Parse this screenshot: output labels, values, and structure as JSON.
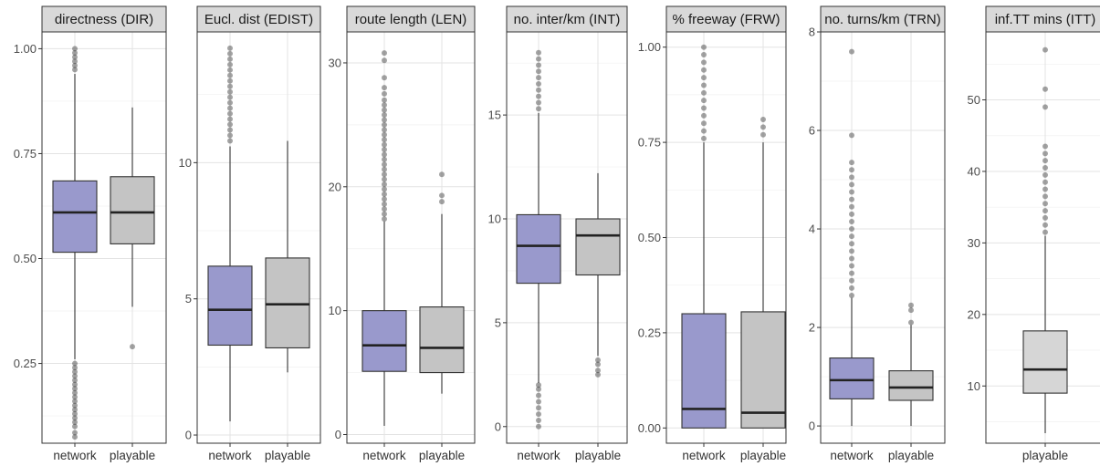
{
  "chart_data": [
    {
      "type": "box",
      "title": "directness (DIR)",
      "ylim": [
        0.06,
        1.04
      ],
      "yticks": [
        0.25,
        0.5,
        0.75,
        1.0
      ],
      "ytick_labels": [
        "0.25",
        "0.50",
        "0.75",
        "1.00"
      ],
      "categories": [
        "network",
        "playable"
      ],
      "boxes": [
        {
          "category": "network",
          "q1": 0.515,
          "median": 0.61,
          "q3": 0.685,
          "whisker_low": 0.26,
          "whisker_high": 0.94,
          "outliers_low": [
            0.075,
            0.085,
            0.1,
            0.11,
            0.12,
            0.13,
            0.14,
            0.15,
            0.16,
            0.17,
            0.18,
            0.19,
            0.2,
            0.21,
            0.22,
            0.23,
            0.24,
            0.25
          ],
          "outliers_high": [
            0.95,
            0.96,
            0.97,
            0.98,
            0.99,
            1.0
          ],
          "fill": "#9999cc"
        },
        {
          "category": "playable",
          "q1": 0.535,
          "median": 0.61,
          "q3": 0.695,
          "whisker_low": 0.385,
          "whisker_high": 0.86,
          "outliers_low": [
            0.29
          ],
          "outliers_high": [],
          "fill": "#c4c4c4"
        }
      ]
    },
    {
      "type": "box",
      "title": "Eucl. dist (EDIST)",
      "ylim": [
        -0.3,
        14.8
      ],
      "yticks": [
        0,
        5,
        10
      ],
      "ytick_labels": [
        "0",
        "5",
        "10"
      ],
      "categories": [
        "network",
        "playable"
      ],
      "boxes": [
        {
          "category": "network",
          "q1": 3.3,
          "median": 4.6,
          "q3": 6.2,
          "whisker_low": 0.5,
          "whisker_high": 10.6,
          "outliers_low": [],
          "outliers_high": [
            10.8,
            11.0,
            11.2,
            11.4,
            11.6,
            11.8,
            12.0,
            12.2,
            12.4,
            12.6,
            12.8,
            13.0,
            13.2,
            13.4,
            13.6,
            13.8,
            14.0,
            14.2
          ],
          "fill": "#9999cc"
        },
        {
          "category": "playable",
          "q1": 3.2,
          "median": 4.8,
          "q3": 6.5,
          "whisker_low": 2.3,
          "whisker_high": 10.8,
          "outliers_low": [],
          "outliers_high": [],
          "fill": "#c4c4c4"
        }
      ]
    },
    {
      "type": "box",
      "title": "route length (LEN)",
      "ylim": [
        -0.7,
        32.5
      ],
      "yticks": [
        0,
        10,
        20,
        30
      ],
      "ytick_labels": [
        "0",
        "10",
        "20",
        "30"
      ],
      "categories": [
        "network",
        "playable"
      ],
      "boxes": [
        {
          "category": "network",
          "q1": 5.1,
          "median": 7.2,
          "q3": 10.0,
          "whisker_low": 0.7,
          "whisker_high": 17.2,
          "outliers_low": [],
          "outliers_high": [
            17.4,
            17.8,
            18.2,
            18.6,
            19.0,
            19.4,
            19.8,
            20.2,
            20.6,
            21.0,
            21.4,
            21.8,
            22.2,
            22.6,
            23.0,
            23.4,
            23.8,
            24.2,
            24.6,
            25.0,
            25.4,
            25.8,
            26.2,
            26.6,
            27.0,
            27.5,
            28.0,
            28.8,
            30.2,
            30.8
          ],
          "fill": "#9999cc"
        },
        {
          "category": "playable",
          "q1": 5.0,
          "median": 7.0,
          "q3": 10.3,
          "whisker_low": 3.3,
          "whisker_high": 17.8,
          "outliers_low": [],
          "outliers_high": [
            18.8,
            19.3,
            21.0
          ],
          "fill": "#c4c4c4"
        }
      ]
    },
    {
      "type": "box",
      "title": "no. inter/km (INT)",
      "ylim": [
        -0.8,
        19.0
      ],
      "yticks": [
        0,
        5,
        10,
        15
      ],
      "ytick_labels": [
        "0",
        "5",
        "10",
        "15"
      ],
      "categories": [
        "network",
        "playable"
      ],
      "boxes": [
        {
          "category": "network",
          "q1": 6.9,
          "median": 8.7,
          "q3": 10.2,
          "whisker_low": 2.1,
          "whisker_high": 15.1,
          "outliers_low": [
            0.0,
            0.3,
            0.6,
            0.9,
            1.2,
            1.5,
            1.8,
            2.0
          ],
          "outliers_high": [
            15.3,
            15.6,
            15.9,
            16.2,
            16.5,
            16.8,
            17.1,
            17.4,
            17.7,
            18.0
          ],
          "fill": "#9999cc"
        },
        {
          "category": "playable",
          "q1": 7.3,
          "median": 9.2,
          "q3": 10.0,
          "whisker_low": 3.4,
          "whisker_high": 12.2,
          "outliers_low": [
            2.5,
            2.7,
            3.0,
            3.2
          ],
          "outliers_high": [],
          "fill": "#c4c4c4"
        }
      ]
    },
    {
      "type": "box",
      "title": "% freeway (FRW)",
      "ylim": [
        -0.04,
        1.04
      ],
      "yticks": [
        0.0,
        0.25,
        0.5,
        0.75,
        1.0
      ],
      "ytick_labels": [
        "0.00",
        "0.25",
        "0.50",
        "0.75",
        "1.00"
      ],
      "categories": [
        "network",
        "playable"
      ],
      "boxes": [
        {
          "category": "network",
          "q1": 0.0,
          "median": 0.05,
          "q3": 0.3,
          "whisker_low": 0.0,
          "whisker_high": 0.75,
          "outliers_low": [],
          "outliers_high": [
            0.76,
            0.78,
            0.8,
            0.82,
            0.84,
            0.86,
            0.88,
            0.9,
            0.92,
            0.94,
            0.96,
            0.98,
            1.0
          ],
          "fill": "#9999cc"
        },
        {
          "category": "playable",
          "q1": 0.0,
          "median": 0.04,
          "q3": 0.305,
          "whisker_low": 0.0,
          "whisker_high": 0.75,
          "outliers_low": [],
          "outliers_high": [
            0.77,
            0.79,
            0.81
          ],
          "fill": "#c4c4c4"
        }
      ]
    },
    {
      "type": "box",
      "title": "no. turns/km (TRN)",
      "ylim": [
        -0.35,
        8.0
      ],
      "yticks": [
        0,
        2,
        4,
        6,
        8
      ],
      "ytick_labels": [
        "0",
        "2",
        "4",
        "6",
        "8"
      ],
      "categories": [
        "network",
        "playable"
      ],
      "boxes": [
        {
          "category": "network",
          "q1": 0.55,
          "median": 0.93,
          "q3": 1.38,
          "whisker_low": 0.0,
          "whisker_high": 2.6,
          "outliers_low": [],
          "outliers_high": [
            2.65,
            2.8,
            2.95,
            3.1,
            3.25,
            3.4,
            3.55,
            3.7,
            3.85,
            4.0,
            4.15,
            4.3,
            4.45,
            4.6,
            4.75,
            4.9,
            5.05,
            5.2,
            5.35,
            5.9,
            7.6
          ],
          "fill": "#9999cc"
        },
        {
          "category": "playable",
          "q1": 0.52,
          "median": 0.78,
          "q3": 1.12,
          "whisker_low": 0.0,
          "whisker_high": 2.05,
          "outliers_low": [],
          "outliers_high": [
            2.1,
            2.35,
            2.45
          ],
          "fill": "#c4c4c4"
        }
      ]
    },
    {
      "type": "box",
      "title": "inf.TT mins (ITT)",
      "ylim": [
        2.0,
        59.5
      ],
      "yticks": [
        10,
        20,
        30,
        40,
        50
      ],
      "ytick_labels": [
        "10",
        "20",
        "30",
        "40",
        "50"
      ],
      "categories": [
        "playable"
      ],
      "boxes": [
        {
          "category": "playable",
          "q1": 9.0,
          "median": 12.3,
          "q3": 17.7,
          "whisker_low": 3.4,
          "whisker_high": 31.0,
          "outliers_low": [],
          "outliers_high": [
            31.5,
            32.5,
            33.5,
            34.5,
            35.5,
            36.5,
            37.5,
            38.5,
            39.5,
            40.5,
            41.5,
            42.5,
            43.5,
            49.0,
            51.5,
            57.0
          ],
          "fill": "#d6d6d6"
        }
      ]
    }
  ]
}
